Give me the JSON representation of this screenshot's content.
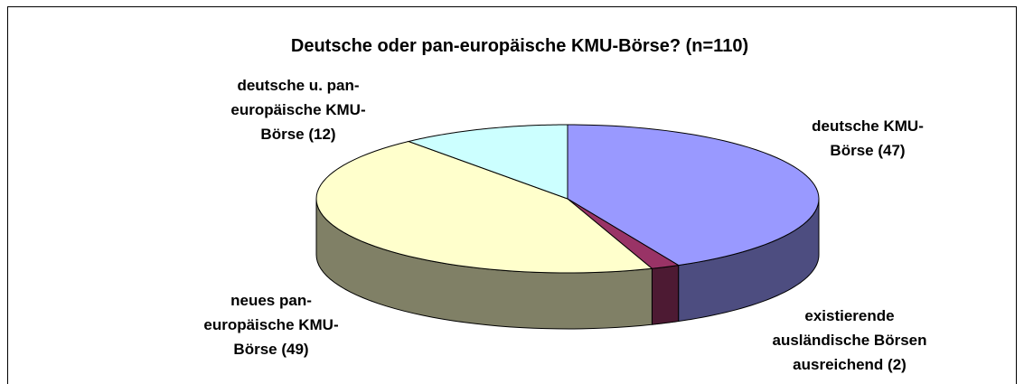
{
  "chart_data": {
    "type": "pie3d",
    "title": "Deutsche oder pan-europäische KMU-Börse?  (n=110)",
    "categories": [
      "deutsche KMU-\nBörse",
      "existierende\nausländische Börsen\nausreichend",
      "neues pan-\neuropäische KMU-\nBörse",
      "deutsche u. pan-\neuropäische KMU-\nBörse"
    ],
    "values": [
      47,
      2,
      49,
      12
    ],
    "value_labels": [
      "(47)",
      "(2)",
      "(49)",
      "(12)"
    ],
    "colors": [
      "#9999FF",
      "#993366",
      "#FFFFCC",
      "#CCFFFF"
    ]
  }
}
